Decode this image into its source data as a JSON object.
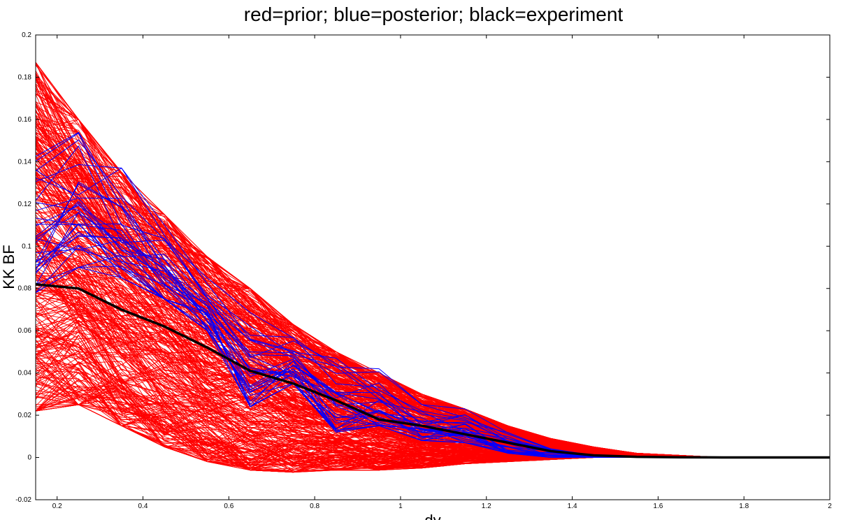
{
  "chart_data": {
    "type": "line",
    "title": "red=prior; blue=posterior; black=experiment",
    "xlabel": "dy",
    "ylabel": "KK BF",
    "xlim": [
      0.15,
      2.0
    ],
    "ylim": [
      -0.02,
      0.2
    ],
    "grid": false,
    "x_ticks": [
      "0.2",
      "0.4",
      "0.6",
      "0.8",
      "1",
      "1.2",
      "1.4",
      "1.6",
      "1.8",
      "2"
    ],
    "y_ticks": [
      "-0.02",
      "0",
      "0.02",
      "0.04",
      "0.06",
      "0.08",
      "0.1",
      "0.12",
      "0.14",
      "0.16",
      "0.18",
      "0.2"
    ],
    "x": [
      0.15,
      0.25,
      0.35,
      0.45,
      0.55,
      0.65,
      0.75,
      0.85,
      0.95,
      1.05,
      1.15,
      1.25,
      1.35,
      1.45,
      1.55,
      1.65,
      1.75,
      1.85,
      1.95,
      2.0
    ],
    "colors": {
      "prior": "#ff0000",
      "posterior": "#0000ff",
      "experiment": "#000000"
    },
    "series": [
      {
        "role": "experiment",
        "values": [
          0.082,
          0.08,
          0.07,
          0.062,
          0.052,
          0.041,
          0.035,
          0.027,
          0.018,
          0.015,
          0.011,
          0.007,
          0.003,
          0.001,
          0.0003,
          0.0001,
          0.0,
          0.0,
          0.0,
          0.0
        ]
      },
      {
        "role": "prior",
        "count": 400,
        "approx_envelope_low": [
          0.022,
          0.025,
          0.015,
          0.005,
          -0.002,
          -0.006,
          -0.007,
          -0.006,
          -0.006,
          -0.005,
          -0.003,
          -0.002,
          -0.001,
          0.0,
          0.0,
          0.0,
          0.0,
          0.0,
          0.0,
          0.0
        ],
        "approx_envelope_high": [
          0.187,
          0.16,
          0.135,
          0.115,
          0.095,
          0.08,
          0.063,
          0.05,
          0.04,
          0.03,
          0.023,
          0.015,
          0.009,
          0.005,
          0.002,
          0.001,
          0.0,
          0.0,
          0.0,
          0.0
        ]
      },
      {
        "role": "posterior",
        "count": 30,
        "approx_envelope_low": [
          0.078,
          0.09,
          0.085,
          0.075,
          0.06,
          0.024,
          0.035,
          0.012,
          0.015,
          0.008,
          0.007,
          0.002,
          0.0,
          0.0,
          0.0,
          0.0,
          0.0,
          0.0,
          0.0,
          0.0
        ],
        "approx_envelope_high": [
          0.145,
          0.158,
          0.137,
          0.11,
          0.085,
          0.073,
          0.057,
          0.047,
          0.042,
          0.025,
          0.023,
          0.013,
          0.005,
          0.001,
          0.0003,
          0.0001,
          0.0,
          0.0,
          0.0,
          0.0
        ]
      }
    ]
  }
}
